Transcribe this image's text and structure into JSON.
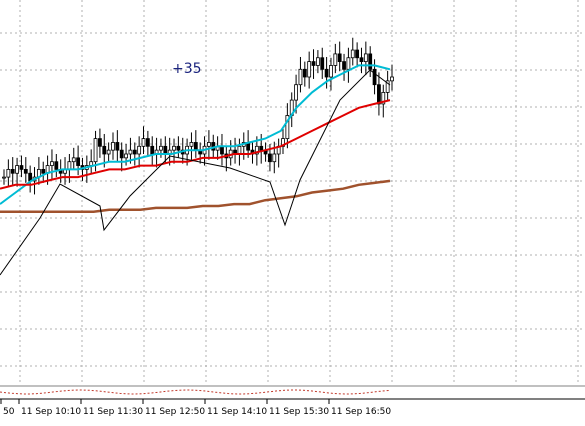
{
  "chart_data": {
    "type": "line",
    "annotation": "+35",
    "x_tick_labels": [
      "50",
      "11 Sep 10:10",
      "11 Sep 11:30",
      "11 Sep 12:50",
      "11 Sep 14:10",
      "11 Sep 15:30",
      "11 Sep 16:50"
    ],
    "grid": true,
    "candles_close": [
      0.54,
      0.56,
      0.55,
      0.57,
      0.56,
      0.55,
      0.53,
      0.54,
      0.56,
      0.55,
      0.57,
      0.58,
      0.56,
      0.55,
      0.56,
      0.58,
      0.59,
      0.57,
      0.56,
      0.57,
      0.58,
      0.64,
      0.62,
      0.6,
      0.61,
      0.63,
      0.61,
      0.59,
      0.6,
      0.61,
      0.6,
      0.62,
      0.64,
      0.62,
      0.6,
      0.61,
      0.62,
      0.6,
      0.61,
      0.62,
      0.61,
      0.6,
      0.62,
      0.63,
      0.61,
      0.6,
      0.62,
      0.63,
      0.61,
      0.62,
      0.6,
      0.59,
      0.61,
      0.6,
      0.62,
      0.63,
      0.61,
      0.6,
      0.62,
      0.61,
      0.6,
      0.58,
      0.6,
      0.62,
      0.64,
      0.7,
      0.74,
      0.78,
      0.82,
      0.8,
      0.84,
      0.83,
      0.85,
      0.82,
      0.8,
      0.83,
      0.86,
      0.84,
      0.82,
      0.85,
      0.87,
      0.85,
      0.84,
      0.86,
      0.82,
      0.78,
      0.73,
      0.76,
      0.79,
      0.8
    ],
    "series": [
      {
        "values": [
          0.47,
          0.5,
          0.53,
          0.55,
          0.56,
          0.56,
          0.57,
          0.58,
          0.58,
          0.59,
          0.6,
          0.6,
          0.61,
          0.61,
          0.62,
          0.62,
          0.63,
          0.64,
          0.66,
          0.72,
          0.76,
          0.79,
          0.81,
          0.83,
          0.83,
          0.82
        ],
        "color": "#00bcd4"
      },
      {
        "values": [
          0.51,
          0.52,
          0.52,
          0.53,
          0.54,
          0.54,
          0.55,
          0.56,
          0.56,
          0.57,
          0.57,
          0.58,
          0.58,
          0.59,
          0.59,
          0.6,
          0.6,
          0.61,
          0.62,
          0.64,
          0.66,
          0.68,
          0.7,
          0.72,
          0.73,
          0.74
        ],
        "color": "#e00000"
      },
      {
        "values": [
          0.45,
          0.45,
          0.45,
          0.45,
          0.45,
          0.45,
          0.45,
          0.455,
          0.455,
          0.455,
          0.46,
          0.46,
          0.46,
          0.465,
          0.465,
          0.47,
          0.47,
          0.48,
          0.485,
          0.49,
          0.5,
          0.505,
          0.51,
          0.52,
          0.525,
          0.53
        ],
        "color": "#a0522d"
      }
    ]
  }
}
